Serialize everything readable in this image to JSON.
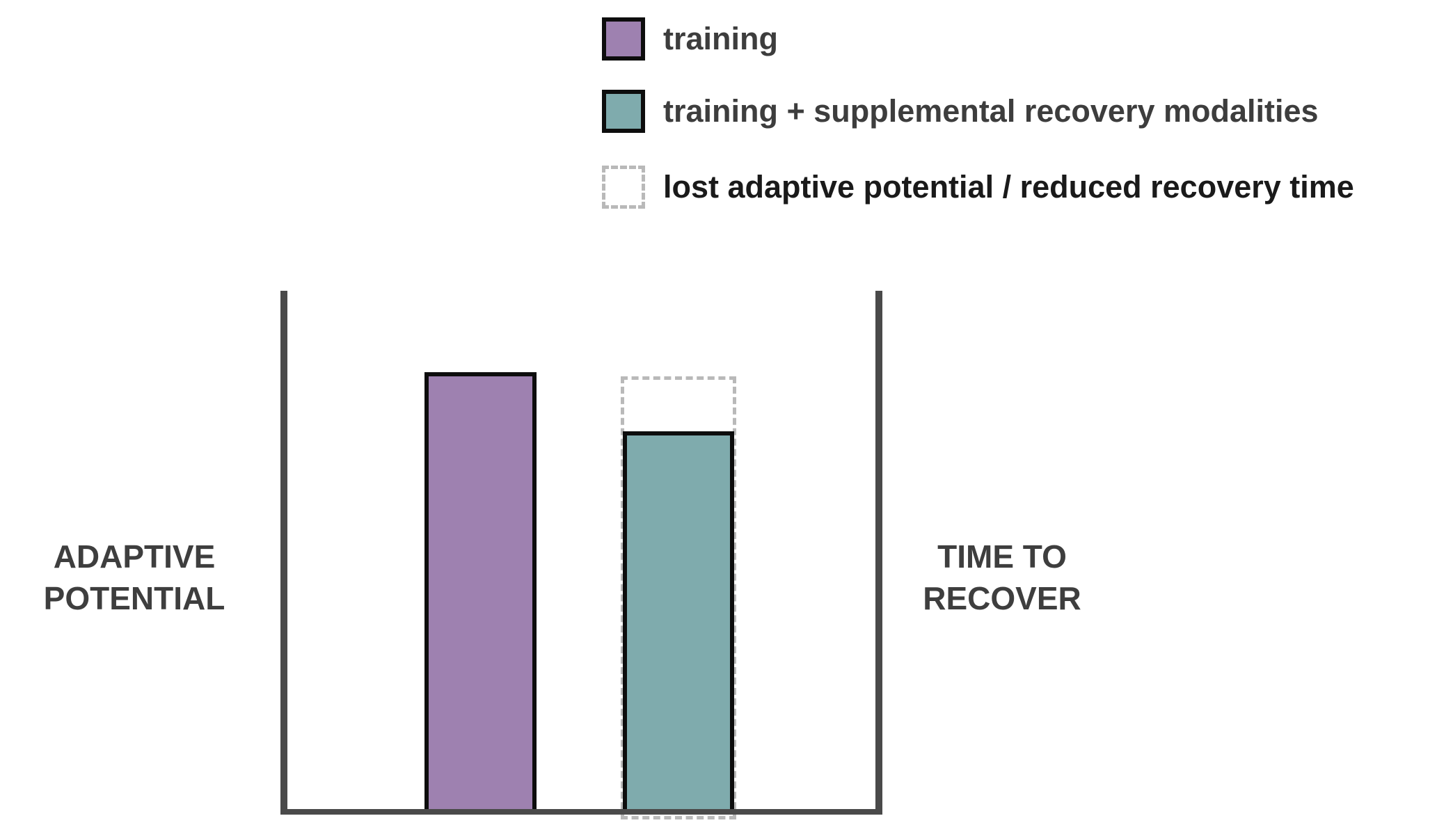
{
  "legend": {
    "items": [
      {
        "label": "training",
        "swatch_style": "solid",
        "swatch_color": "#9e81b0",
        "label_color": "#3d3d3d"
      },
      {
        "label": "training + supplemental recovery modalities",
        "swatch_style": "solid",
        "swatch_color": "#7fabad",
        "label_color": "#3d3d3d"
      },
      {
        "label": "lost adaptive potential / reduced recovery time",
        "swatch_style": "dashed",
        "swatch_color": "#ffffff",
        "label_color": "#1a1a1a"
      }
    ]
  },
  "axes": {
    "left_label": "ADAPTIVE POTENTIAL",
    "right_label": "TIME TO RECOVER",
    "line_color": "#4a4a4a"
  },
  "chart_data": {
    "type": "bar",
    "categories": [
      "training",
      "training + supplemental recovery modalities"
    ],
    "values_relative": [
      1.0,
      0.865
    ],
    "series_colors": [
      "#9e81b0",
      "#7fabad"
    ],
    "overlay": {
      "label": "lost adaptive potential / reduced recovery time",
      "applies_to_category": "training + supplemental recovery modalities",
      "from_relative": 0.865,
      "top_relative": 0.99,
      "style": "dashed-outline",
      "color": "#b9b9b9"
    },
    "title": "",
    "xlabel": "",
    "left_axis_label": "ADAPTIVE POTENTIAL",
    "right_axis_label": "TIME TO RECOVER",
    "ylim": [
      0,
      1.19
    ],
    "tick_labels": [],
    "gridlines": false,
    "legend_position": "top-center"
  }
}
